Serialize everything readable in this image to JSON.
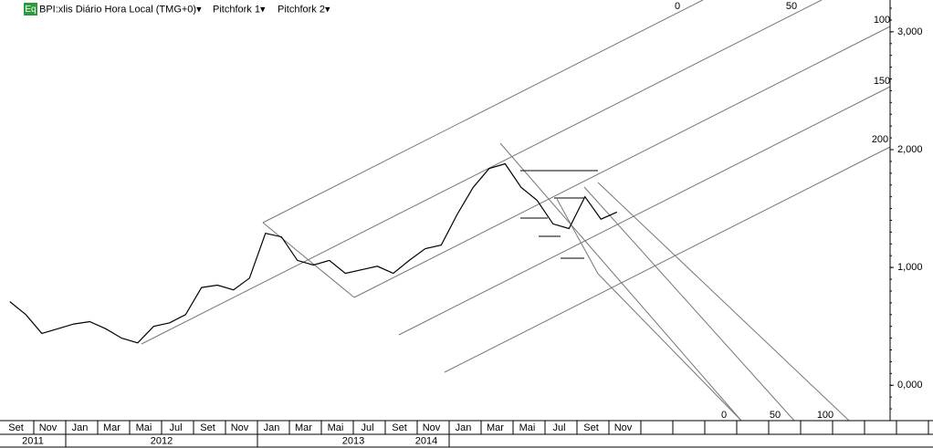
{
  "chart_data": {
    "type": "line",
    "header": {
      "badge": "Eq",
      "symbol": "BPI:xlis Diário Hora Local (TMG+0)▾",
      "tool1": "Pitchfork 1▾",
      "tool2": "Pitchfork 2▾"
    },
    "x": [
      "2011-09",
      "2011-10",
      "2011-11",
      "2011-12",
      "2012-01",
      "2012-02",
      "2012-03",
      "2012-04",
      "2012-05",
      "2012-06",
      "2012-07",
      "2012-08",
      "2012-09",
      "2012-10",
      "2012-11",
      "2012-12",
      "2013-01",
      "2013-02",
      "2013-03",
      "2013-04",
      "2013-05",
      "2013-06",
      "2013-07",
      "2013-08",
      "2013-09",
      "2013-10",
      "2013-11",
      "2013-12",
      "2014-01",
      "2014-02",
      "2014-03",
      "2014-04",
      "2014-05",
      "2014-06",
      "2014-07",
      "2014-08",
      "2014-09",
      "2014-10",
      "2014-11"
    ],
    "series": [
      {
        "name": "BPI",
        "color": "#000000",
        "values": [
          0.71,
          0.6,
          0.44,
          0.48,
          0.52,
          0.54,
          0.48,
          0.4,
          0.36,
          0.5,
          0.53,
          0.6,
          0.83,
          0.85,
          0.81,
          0.91,
          1.29,
          1.26,
          1.06,
          1.02,
          1.06,
          0.95,
          0.98,
          1.01,
          0.95,
          1.06,
          1.16,
          1.19,
          1.45,
          1.68,
          1.84,
          1.88,
          1.68,
          1.57,
          1.37,
          1.33,
          1.6,
          1.41,
          1.47
        ]
      }
    ],
    "ylim": [
      -0.3,
      3.27
    ],
    "yticks": [
      {
        "value": 0,
        "label": "0,000"
      },
      {
        "value": 1,
        "label": "1,000"
      },
      {
        "value": 2,
        "label": "2,000"
      },
      {
        "value": 3,
        "label": "3,000"
      }
    ],
    "month_labels": [
      "Set",
      "Nov",
      "Jan",
      "Mar",
      "Mai",
      "Jul",
      "Set",
      "Nov",
      "Jan",
      "Mar",
      "Mai",
      "Jul",
      "Set",
      "Nov",
      "Jan",
      "Mar",
      "Mai",
      "Jul",
      "Set",
      "Nov"
    ],
    "years": [
      "2011",
      "2012",
      "2013",
      "2014"
    ],
    "pitchfork1_labels": [
      "0",
      "50",
      "100",
      "150",
      "200"
    ],
    "pitchfork2_labels": [
      "0",
      "50",
      "100"
    ]
  }
}
